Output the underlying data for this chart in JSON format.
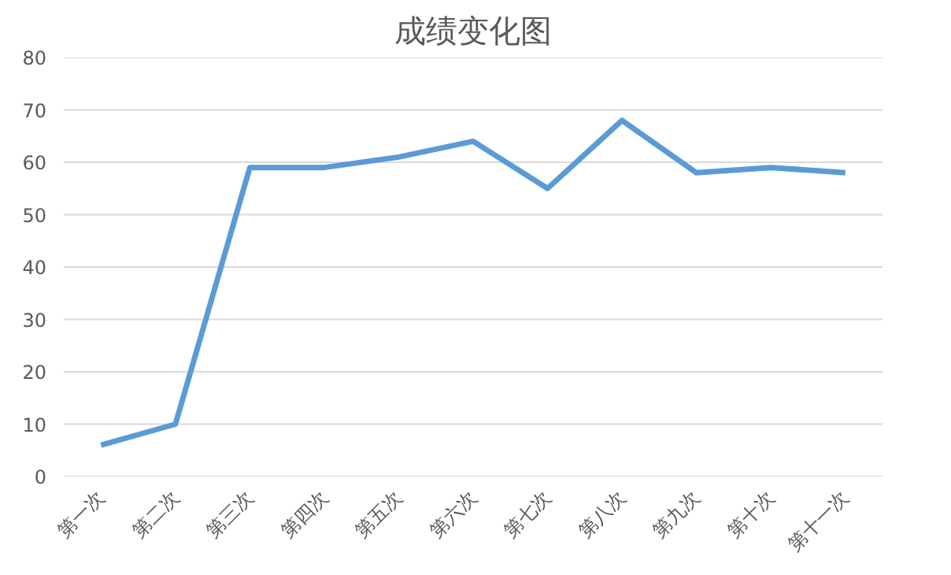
{
  "chart_data": {
    "type": "line",
    "title": "成绩变化图",
    "categories": [
      "第一次",
      "第二次",
      "第三次",
      "第四次",
      "第五次",
      "第六次",
      "第七次",
      "第八次",
      "第九次",
      "第十次",
      "第十一次"
    ],
    "series": [
      {
        "color": "#5b9bd5",
        "values": [
          6,
          10,
          59,
          59,
          61,
          64,
          55,
          68,
          58,
          59,
          58
        ]
      }
    ],
    "ylim": [
      0,
      80
    ],
    "yticks": [
      0,
      10,
      20,
      30,
      40,
      50,
      60,
      70,
      80
    ],
    "grid": "y",
    "marker": "none",
    "line_style": "solid"
  }
}
